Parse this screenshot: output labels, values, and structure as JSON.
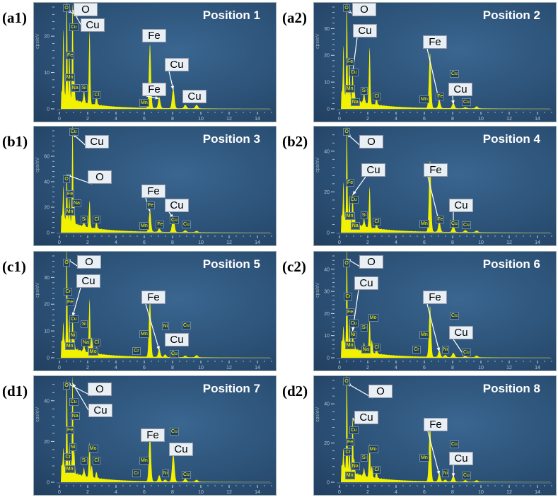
{
  "chart_data": [
    {
      "type": "area",
      "panel": "(a1)",
      "title": "Position 1",
      "ylabel": "cps/eV",
      "xlim": [
        0,
        15
      ],
      "ylim": [
        0,
        28
      ],
      "xticks": [
        0,
        2,
        4,
        6,
        8,
        10,
        12,
        14
      ],
      "yticks": [
        0,
        10,
        20
      ],
      "peaks": [
        [
          0.28,
          18
        ],
        [
          0.52,
          27
        ],
        [
          0.7,
          13
        ],
        [
          0.93,
          26
        ],
        [
          1.04,
          7
        ],
        [
          1.74,
          3.5
        ],
        [
          2.13,
          20
        ],
        [
          2.62,
          2.5
        ],
        [
          6.4,
          17.5
        ],
        [
          7.06,
          3
        ],
        [
          8.05,
          5.5
        ],
        [
          8.9,
          1
        ],
        [
          9.7,
          1
        ]
      ],
      "callouts": [
        {
          "label": "O",
          "target_keV": 0.52
        },
        {
          "label": "Cu",
          "target_keV": 0.93
        },
        {
          "label": "Fe",
          "target_keV": 6.4
        },
        {
          "label": "Fe",
          "target_keV": 7.06
        },
        {
          "label": "Cu",
          "target_keV": 8.05
        },
        {
          "label": "Cu",
          "target_keV": 8.9
        }
      ],
      "tags": [
        [
          "O",
          0.52,
          28
        ],
        [
          "Cu",
          0.93,
          25
        ],
        [
          "Fe",
          0.7,
          15
        ],
        [
          "Mn",
          0.64,
          9
        ],
        [
          "Na",
          1.04,
          6
        ],
        [
          "Si",
          1.74,
          6
        ],
        [
          "Cl",
          2.62,
          4
        ],
        [
          "Mn",
          5.9,
          2
        ]
      ]
    },
    {
      "type": "area",
      "panel": "(a2)",
      "title": "Position 2",
      "ylabel": "cps/eV",
      "xlim": [
        0,
        15
      ],
      "ylim": [
        0,
        38
      ],
      "xticks": [
        0,
        2,
        4,
        6,
        8,
        10,
        12,
        14
      ],
      "yticks": [
        0,
        10,
        20,
        30
      ],
      "peaks": [
        [
          0.28,
          18.5
        ],
        [
          0.52,
          36
        ],
        [
          0.7,
          15
        ],
        [
          0.93,
          10
        ],
        [
          1.04,
          5
        ],
        [
          1.74,
          4
        ],
        [
          2.13,
          21
        ],
        [
          2.62,
          2.5
        ],
        [
          6.4,
          20.5
        ],
        [
          7.06,
          3
        ],
        [
          8.05,
          2
        ],
        [
          8.9,
          0.5
        ],
        [
          9.7,
          0.8
        ]
      ],
      "callouts": [
        {
          "label": "O",
          "target_keV": 0.52
        },
        {
          "label": "Cu",
          "target_keV": 0.93
        },
        {
          "label": "Fe",
          "target_keV": 7.06
        },
        {
          "label": "Cu",
          "target_keV": 8.05
        }
      ],
      "tags": [
        [
          "O",
          0.52,
          38
        ],
        [
          "Fe",
          0.7,
          18
        ],
        [
          "Cu",
          0.93,
          14
        ],
        [
          "Mn",
          0.64,
          11
        ],
        [
          "Na",
          1.04,
          6
        ],
        [
          "Si",
          1.74,
          7
        ],
        [
          "Cl",
          2.62,
          5
        ],
        [
          "Mn",
          5.9,
          4
        ],
        [
          "Fe",
          7.06,
          5
        ],
        [
          "Cu",
          8.05,
          4
        ],
        [
          "Cu",
          8.9,
          3
        ]
      ]
    },
    {
      "type": "area",
      "panel": "(b1)",
      "title": "Position 3",
      "ylabel": "cps/eV",
      "xlim": [
        0,
        15
      ],
      "ylim": [
        0,
        80
      ],
      "xticks": [
        0,
        2,
        4,
        6,
        8,
        10,
        12,
        14
      ],
      "yticks": [
        0,
        20,
        40,
        60
      ],
      "peaks": [
        [
          0.28,
          26
        ],
        [
          0.52,
          37
        ],
        [
          0.7,
          18
        ],
        [
          0.93,
          78
        ],
        [
          1.04,
          20
        ],
        [
          1.74,
          4
        ],
        [
          2.13,
          21
        ],
        [
          2.62,
          5
        ],
        [
          6.4,
          17
        ],
        [
          7.06,
          2.5
        ],
        [
          8.05,
          12
        ],
        [
          8.9,
          1.5
        ],
        [
          9.7,
          1
        ]
      ],
      "callouts": [
        {
          "label": "Cu",
          "target_keV": 0.93
        },
        {
          "label": "O",
          "target_keV": 0.52
        },
        {
          "label": "Fe",
          "target_keV": 6.4
        },
        {
          "label": "Cu",
          "target_keV": 8.05
        }
      ],
      "tags": [
        [
          "Cu",
          0.93,
          80
        ],
        [
          "O",
          0.52,
          43
        ],
        [
          "Fe",
          0.7,
          31
        ],
        [
          "Na",
          1.15,
          24
        ],
        [
          "Mn",
          0.64,
          17
        ],
        [
          "Si",
          1.74,
          11
        ],
        [
          "Cl",
          2.62,
          11
        ],
        [
          "Mn",
          5.9,
          6
        ],
        [
          "Fe",
          6.4,
          22
        ],
        [
          "Fe",
          7.06,
          7
        ],
        [
          "Cu",
          8.05,
          17
        ],
        [
          "Cu",
          8.9,
          7
        ]
      ]
    },
    {
      "type": "area",
      "panel": "(b2)",
      "title": "Position 4",
      "ylabel": "cps/eV",
      "xlim": [
        0,
        15
      ],
      "ylim": [
        0,
        50
      ],
      "xticks": [
        0,
        2,
        4,
        6,
        8,
        10,
        12,
        14
      ],
      "yticks": [
        0,
        20,
        40
      ],
      "peaks": [
        [
          0.28,
          18
        ],
        [
          0.52,
          47
        ],
        [
          0.7,
          12
        ],
        [
          0.93,
          14
        ],
        [
          1.04,
          6
        ],
        [
          1.74,
          4
        ],
        [
          2.13,
          20
        ],
        [
          2.62,
          2.5
        ],
        [
          6.4,
          35
        ],
        [
          7.06,
          5
        ],
        [
          8.05,
          3
        ],
        [
          8.9,
          1
        ],
        [
          9.7,
          0.8
        ]
      ],
      "callouts": [
        {
          "label": "O",
          "target_keV": 0.52
        },
        {
          "label": "Cu",
          "target_keV": 0.93
        },
        {
          "label": "Fe",
          "target_keV": 7.06
        },
        {
          "label": "Cu",
          "target_keV": 8.05
        }
      ],
      "tags": [
        [
          "O",
          0.52,
          50
        ],
        [
          "Fe",
          0.7,
          25
        ],
        [
          "Cu",
          0.93,
          21
        ],
        [
          "Mn",
          0.64,
          17
        ],
        [
          "Na",
          1.04,
          12
        ],
        [
          "Si",
          1.74,
          9
        ],
        [
          "Cl",
          2.62,
          6
        ],
        [
          "Mn",
          5.9,
          5
        ],
        [
          "Fe",
          7.06,
          7
        ],
        [
          "Cu",
          8.05,
          5
        ],
        [
          "Cu",
          8.9,
          4
        ]
      ]
    },
    {
      "type": "area",
      "panel": "(c1)",
      "title": "Position 5",
      "ylabel": "cps/eV",
      "xlim": [
        0,
        15
      ],
      "ylim": [
        0,
        38
      ],
      "xticks": [
        0,
        2,
        4,
        6,
        8,
        10,
        12,
        14
      ],
      "yticks": [
        0,
        10,
        20,
        30
      ],
      "peaks": [
        [
          0.28,
          8
        ],
        [
          0.52,
          37
        ],
        [
          0.7,
          10
        ],
        [
          0.93,
          12
        ],
        [
          1.04,
          4
        ],
        [
          1.74,
          3
        ],
        [
          2.13,
          20
        ],
        [
          2.29,
          6
        ],
        [
          2.62,
          2.5
        ],
        [
          6.4,
          21
        ],
        [
          7.06,
          3
        ],
        [
          7.48,
          1
        ],
        [
          8.05,
          2.5
        ],
        [
          8.9,
          0.6
        ],
        [
          9.7,
          0.8
        ]
      ],
      "callouts": [
        {
          "label": "O",
          "target_keV": 0.52
        },
        {
          "label": "Cu",
          "target_keV": 0.93
        },
        {
          "label": "Fe",
          "target_keV": 7.06
        },
        {
          "label": "Cu",
          "target_keV": 8.05
        }
      ],
      "tags": [
        [
          "O",
          0.52,
          39
        ],
        [
          "Cr",
          0.57,
          25
        ],
        [
          "Fe",
          0.7,
          21
        ],
        [
          "Cu",
          0.93,
          18
        ],
        [
          "Ni",
          0.93,
          15
        ],
        [
          "Mn",
          0.64,
          11
        ],
        [
          "Na",
          1.04,
          6
        ],
        [
          "Si",
          1.74,
          13
        ],
        [
          "Mo",
          2.29,
          9
        ],
        [
          "Cl",
          2.62,
          6
        ],
        [
          "Cr",
          5.41,
          3
        ],
        [
          "Mn",
          5.9,
          6
        ],
        [
          "Ni",
          7.48,
          9
        ],
        [
          "Cu",
          8.05,
          5
        ],
        [
          "Cu",
          8.9,
          3
        ]
      ]
    },
    {
      "type": "area",
      "panel": "(c2)",
      "title": "Position 6",
      "ylabel": "cps/eV",
      "xlim": [
        0,
        15
      ],
      "ylim": [
        0,
        46
      ],
      "xticks": [
        0,
        2,
        4,
        6,
        8,
        10,
        12,
        14
      ],
      "yticks": [
        0,
        10,
        20,
        30,
        40
      ],
      "peaks": [
        [
          0.28,
          8
        ],
        [
          0.52,
          45
        ],
        [
          0.7,
          10
        ],
        [
          0.93,
          8
        ],
        [
          1.04,
          4
        ],
        [
          1.74,
          4
        ],
        [
          2.13,
          15
        ],
        [
          2.29,
          6
        ],
        [
          2.62,
          2.5
        ],
        [
          6.4,
          23
        ],
        [
          7.06,
          3
        ],
        [
          7.48,
          1
        ],
        [
          8.05,
          2
        ],
        [
          8.9,
          0.6
        ],
        [
          9.7,
          0.8
        ]
      ],
      "callouts": [
        {
          "label": "O",
          "target_keV": 0.52
        },
        {
          "label": "Cu",
          "target_keV": 0.93
        },
        {
          "label": "Fe",
          "target_keV": 7.06
        },
        {
          "label": "Cu",
          "target_keV": 8.9
        }
      ],
      "tags": [
        [
          "O",
          0.52,
          47
        ],
        [
          "Cr",
          0.57,
          28
        ],
        [
          "Fe",
          0.7,
          21
        ],
        [
          "Cu",
          0.93,
          16
        ],
        [
          "Ni",
          0.93,
          11
        ],
        [
          "Mn",
          0.64,
          6
        ],
        [
          "Na",
          1.04,
          4
        ],
        [
          "Si",
          1.74,
          14
        ],
        [
          "Mo",
          2.29,
          11
        ],
        [
          "Cl",
          2.62,
          5
        ],
        [
          "Cr",
          5.41,
          4
        ],
        [
          "Mn",
          5.9,
          7
        ],
        [
          "Ni",
          7.48,
          4
        ],
        [
          "Cu",
          8.05,
          4
        ],
        [
          "Cu",
          8.9,
          3
        ]
      ]
    },
    {
      "type": "area",
      "panel": "(d1)",
      "title": "Position 7",
      "ylabel": "cps/eV",
      "xlim": [
        0,
        15
      ],
      "ylim": [
        0,
        50
      ],
      "xticks": [
        0,
        2,
        4,
        6,
        8,
        10,
        12,
        14
      ],
      "yticks": [
        0,
        20,
        40
      ],
      "peaks": [
        [
          0.28,
          10
        ],
        [
          0.52,
          45
        ],
        [
          0.7,
          12
        ],
        [
          0.93,
          47
        ],
        [
          1.04,
          12
        ],
        [
          1.74,
          4
        ],
        [
          2.13,
          17
        ],
        [
          2.29,
          6
        ],
        [
          2.62,
          3
        ],
        [
          6.4,
          23
        ],
        [
          7.06,
          3
        ],
        [
          7.48,
          1
        ],
        [
          8.05,
          14
        ],
        [
          8.9,
          1.5
        ],
        [
          9.7,
          1
        ]
      ],
      "callouts": [
        {
          "label": "O",
          "target_keV": 0.52
        },
        {
          "label": "Cu",
          "target_keV": 0.93
        },
        {
          "label": "Fe",
          "target_keV": 6.4
        },
        {
          "label": "Cu",
          "target_keV": 8.05
        }
      ],
      "tags": [
        [
          "O",
          0.52,
          48
        ],
        [
          "Cu",
          0.93,
          44
        ],
        [
          "Na",
          1.04,
          33
        ],
        [
          "Fe",
          0.7,
          26
        ],
        [
          "Ni",
          0.93,
          22
        ],
        [
          "Cr",
          0.57,
          17
        ],
        [
          "Mn",
          0.64,
          11
        ],
        [
          "Si",
          1.74,
          11
        ],
        [
          "Mo",
          2.29,
          17
        ],
        [
          "Cl",
          2.62,
          11
        ],
        [
          "Cr",
          5.41,
          5
        ],
        [
          "Mn",
          5.9,
          11
        ],
        [
          "Ni",
          7.48,
          5
        ],
        [
          "Cu",
          8.05,
          17
        ],
        [
          "Cu",
          8.9,
          4
        ]
      ]
    },
    {
      "type": "area",
      "panel": "(d2)",
      "title": "Position 8",
      "ylabel": "cps/eV",
      "xlim": [
        0,
        15
      ],
      "ylim": [
        0,
        52
      ],
      "xticks": [
        0,
        2,
        4,
        6,
        8,
        10,
        12,
        14
      ],
      "yticks": [
        0,
        20,
        40
      ],
      "peaks": [
        [
          0.28,
          10
        ],
        [
          0.52,
          50
        ],
        [
          0.7,
          12
        ],
        [
          0.93,
          28
        ],
        [
          1.04,
          8
        ],
        [
          1.74,
          4
        ],
        [
          2.13,
          17
        ],
        [
          2.29,
          6
        ],
        [
          2.62,
          3
        ],
        [
          6.4,
          29
        ],
        [
          7.06,
          4
        ],
        [
          7.48,
          1
        ],
        [
          8.05,
          3
        ],
        [
          8.9,
          0.8
        ],
        [
          9.7,
          0.8
        ]
      ],
      "callouts": [
        {
          "label": "O",
          "target_keV": 0.52
        },
        {
          "label": "Cu",
          "target_keV": 0.93
        },
        {
          "label": "Fe",
          "target_keV": 7.06
        },
        {
          "label": "Cu",
          "target_keV": 8.05
        }
      ],
      "tags": [
        [
          "O",
          0.52,
          52
        ],
        [
          "Cu",
          0.93,
          27
        ],
        [
          "Fe",
          0.7,
          21
        ],
        [
          "Cr",
          0.57,
          16
        ],
        [
          "Na",
          1.04,
          13
        ],
        [
          "Mn",
          0.64,
          4
        ],
        [
          "Si",
          1.74,
          13
        ],
        [
          "Mo",
          2.29,
          13
        ],
        [
          "Cl",
          2.62,
          7
        ],
        [
          "Mn",
          5.9,
          13
        ],
        [
          "Ni",
          7.48,
          5
        ],
        [
          "Cu",
          8.05,
          7
        ],
        [
          "Cu",
          8.9,
          4
        ]
      ]
    }
  ]
}
